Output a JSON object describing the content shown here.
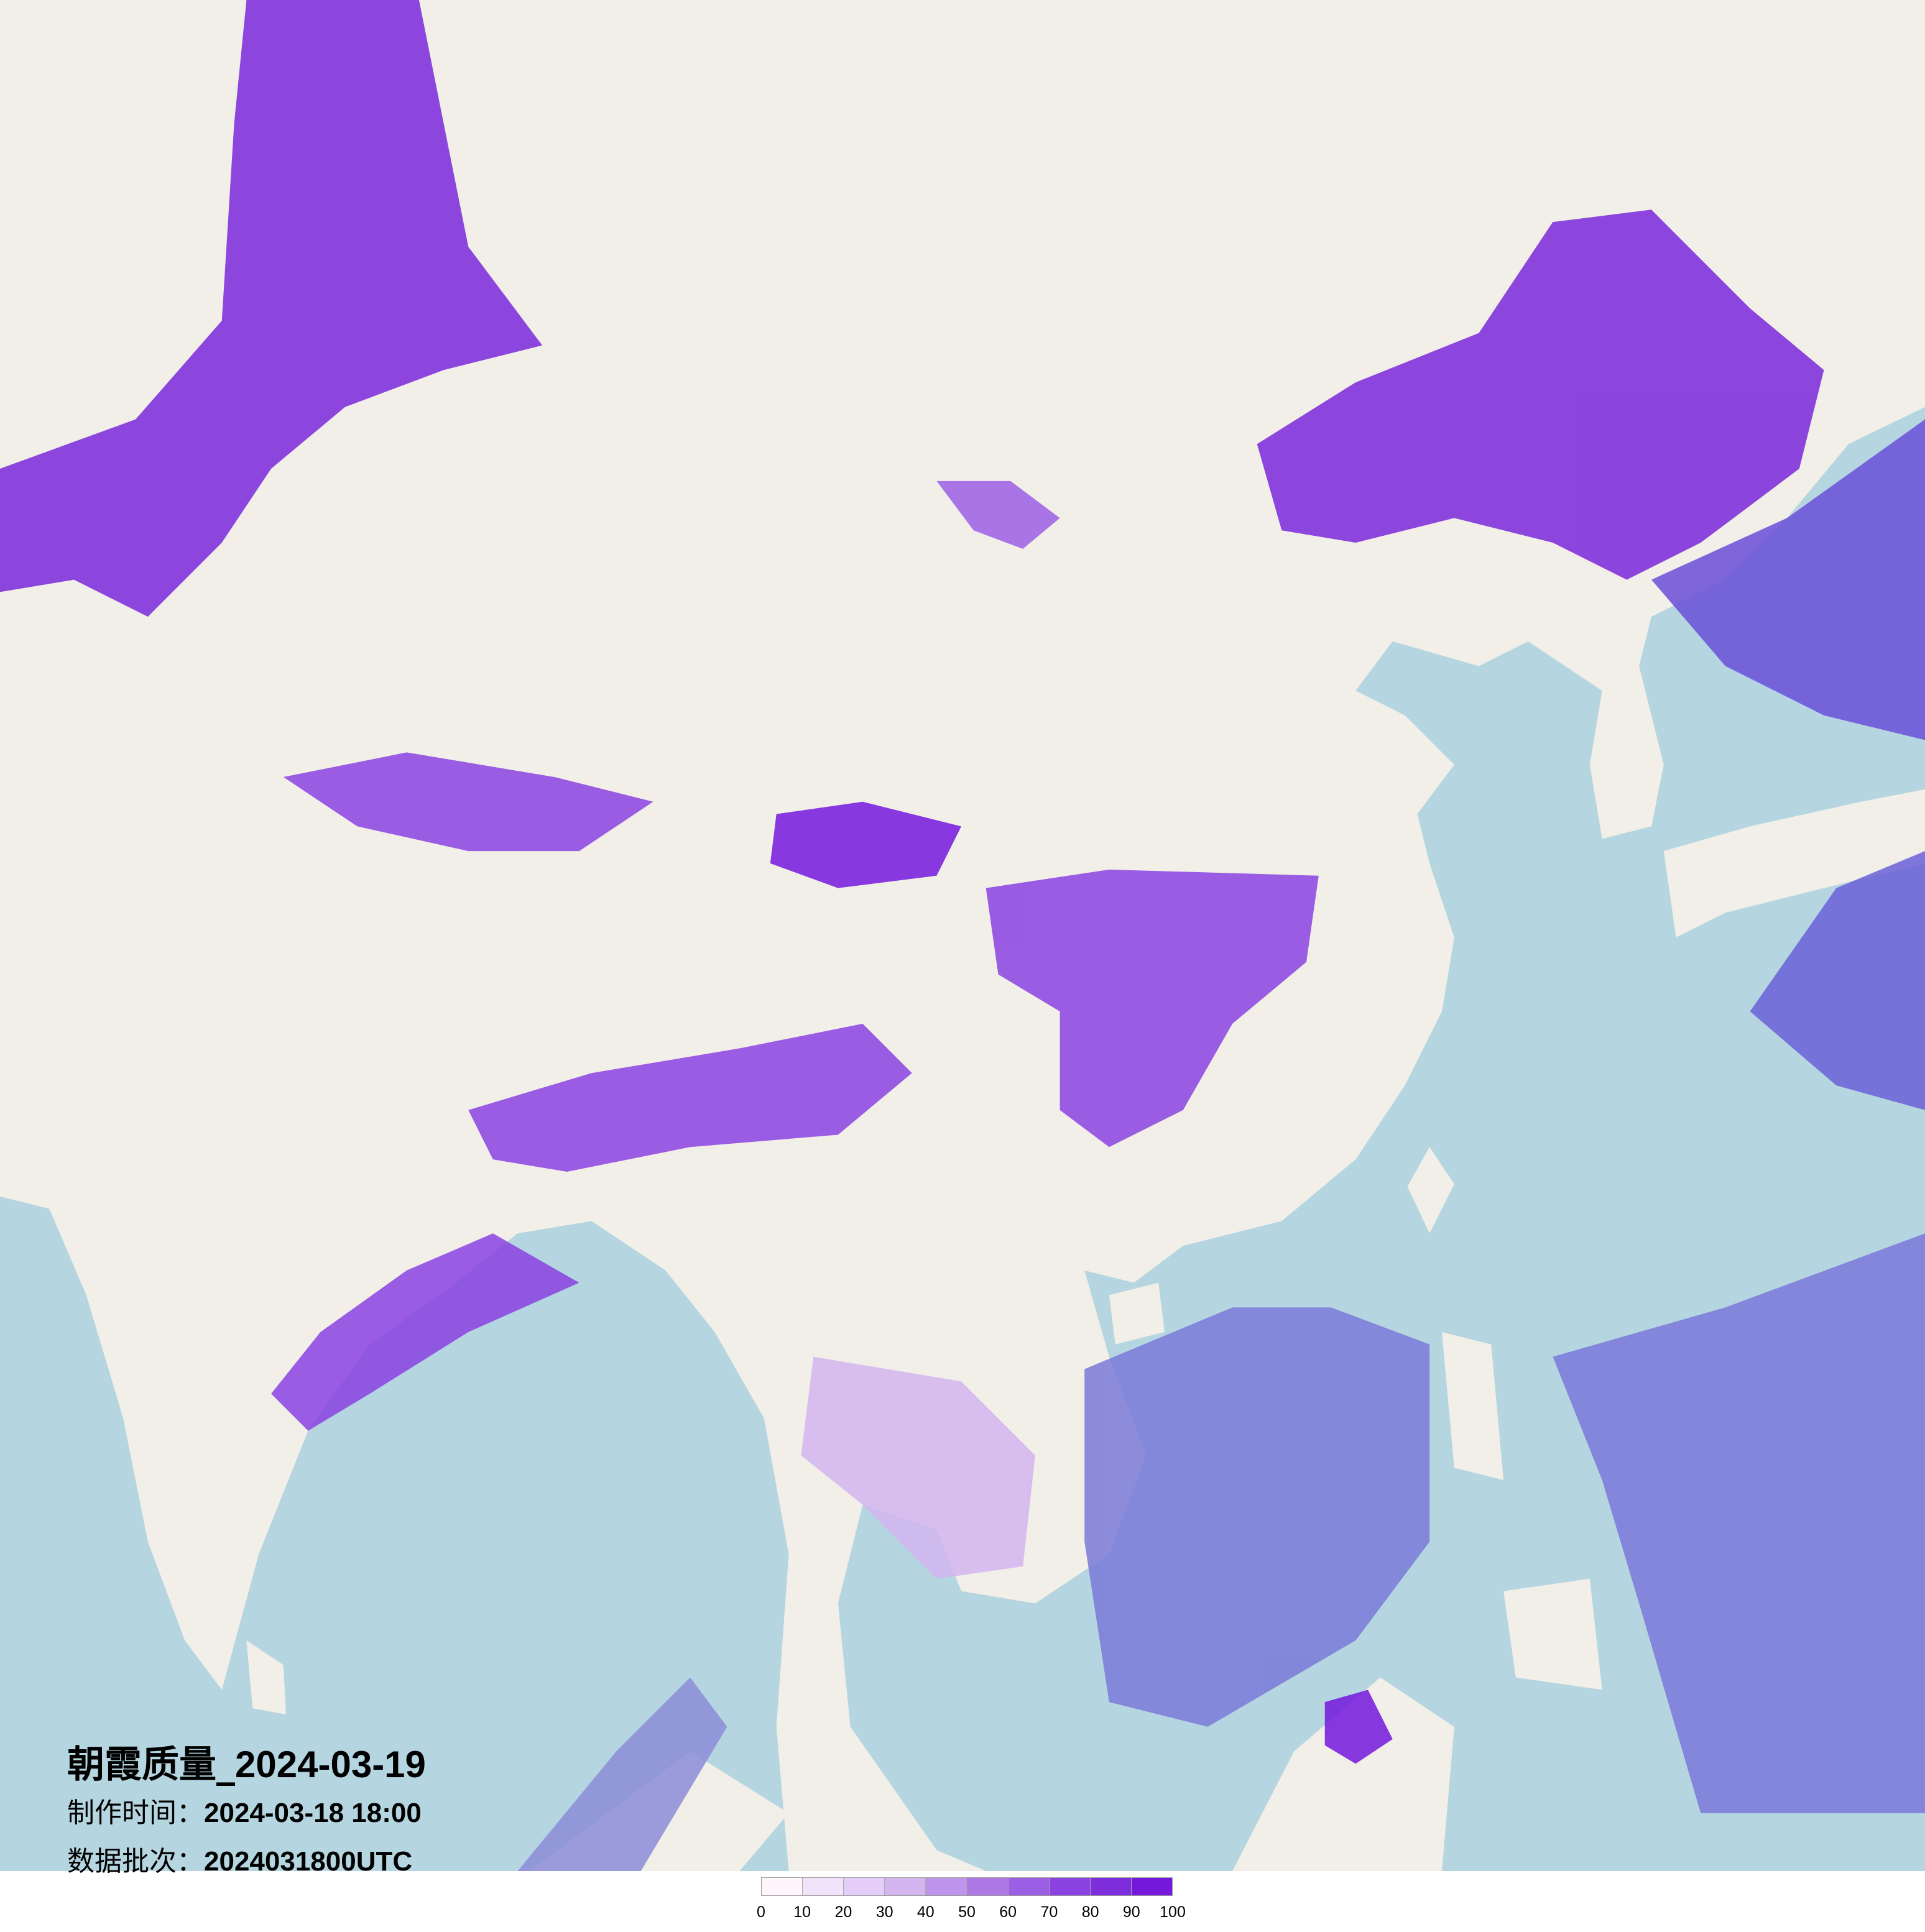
{
  "title": {
    "label": "朝霞质量_",
    "date": "2024-03-19"
  },
  "make_time": {
    "label": "制作时间：",
    "value": "2024-03-18 18:00"
  },
  "data_batch": {
    "label": "数据批次：",
    "value": "2024031800UTC"
  },
  "legend": {
    "ticks": [
      "0",
      "10",
      "20",
      "30",
      "40",
      "50",
      "60",
      "70",
      "80",
      "90",
      "100"
    ],
    "colors": [
      "#fdf7fd",
      "#f1e3fa",
      "#e4cdf8",
      "#d3b5f0",
      "#bf94ec",
      "#ae78e4",
      "#9c5ee4",
      "#8a42e0",
      "#7e2ddc",
      "#7418dc"
    ]
  },
  "map": {
    "sea_color": "#b5d6e0",
    "land_color": "#f2efe9",
    "overlay_sea_color": "#8a8ad8"
  }
}
